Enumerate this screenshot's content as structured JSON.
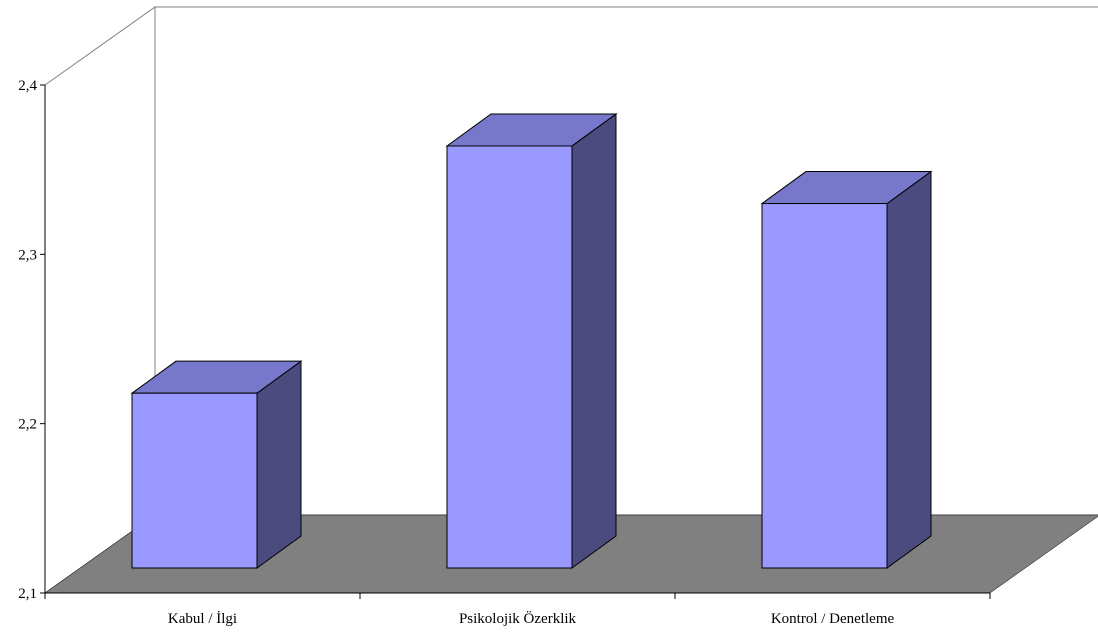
{
  "chart_data": {
    "type": "bar",
    "categories": [
      "Kabul / İlgi",
      "Psikolojik Özerklik",
      "Kontrol / Denetleme"
    ],
    "values": [
      2.218,
      2.364,
      2.33
    ],
    "ylim": [
      2.1,
      2.4
    ],
    "yticks": [
      "2,1",
      "2,2",
      "2,3",
      "2,4"
    ],
    "title": "",
    "xlabel": "",
    "ylabel": "",
    "grid": false,
    "legend": "none",
    "colors": {
      "bar_front": "#9999FF",
      "bar_top": "#7777CC",
      "bar_side": "#4B4B7F",
      "floor": "#808080",
      "wall_stroke": "#808080"
    }
  }
}
